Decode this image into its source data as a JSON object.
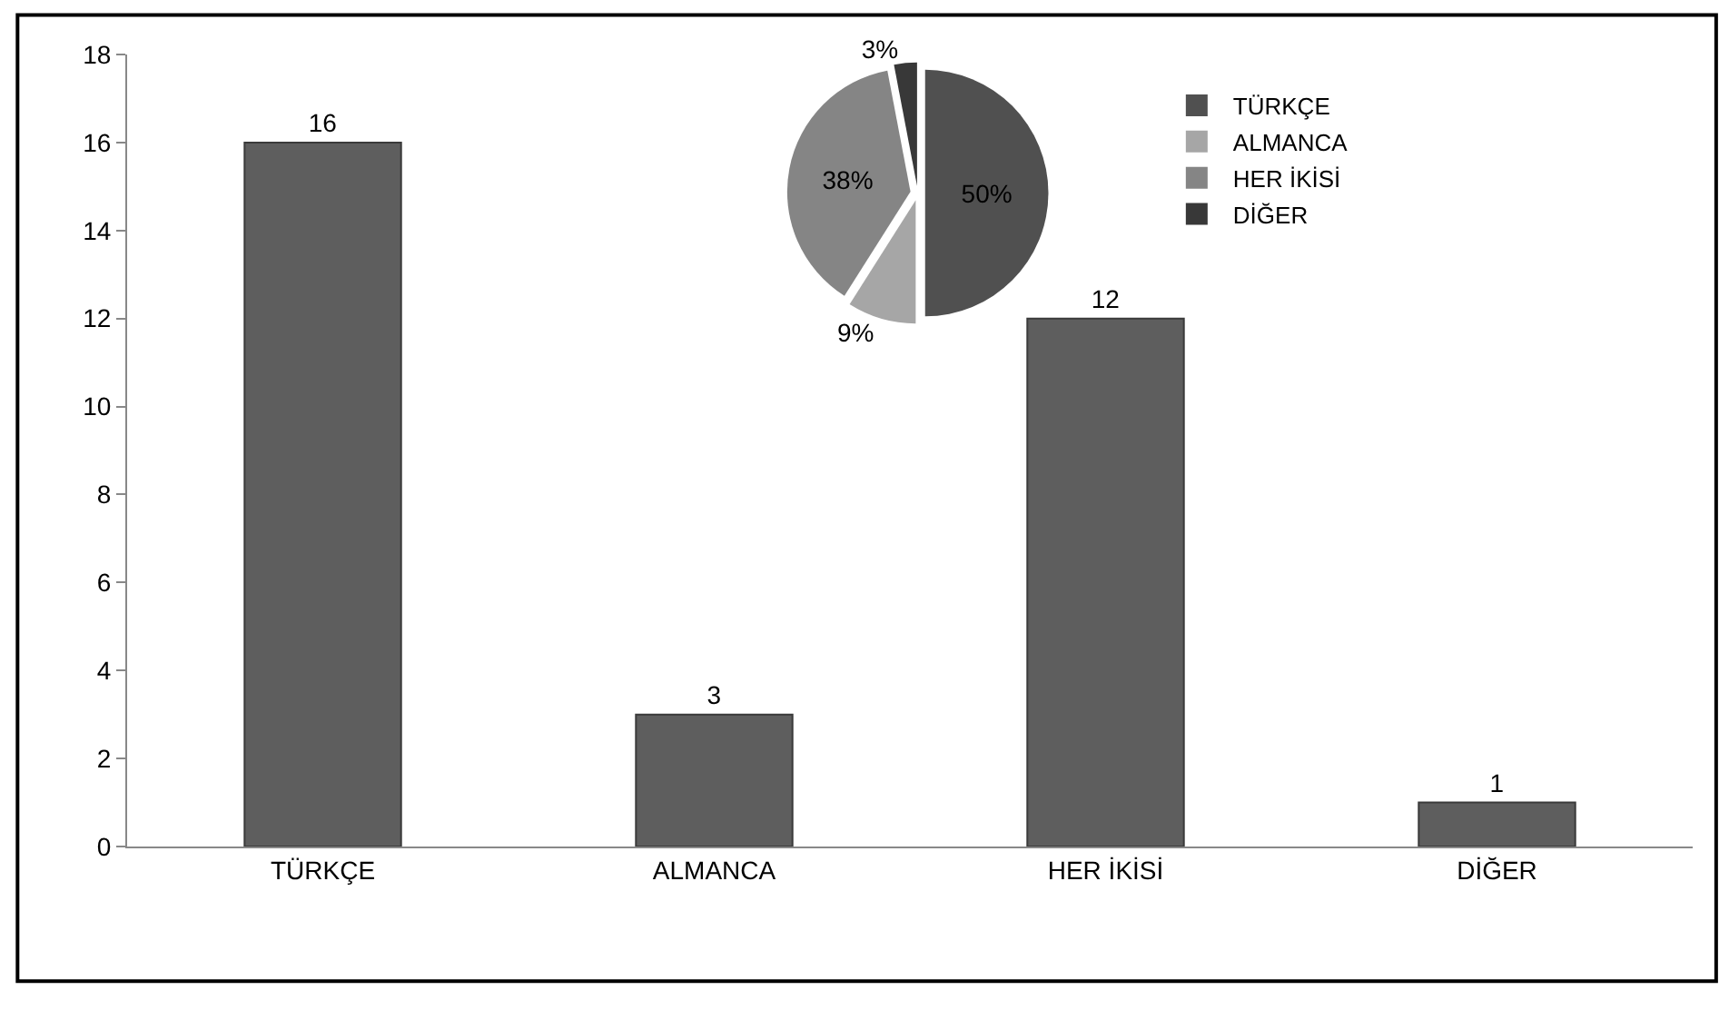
{
  "chart_data": [
    {
      "type": "bar",
      "categories": [
        "TÜRKÇE",
        "ALMANCA",
        "HER İKİSİ",
        "DİĞER"
      ],
      "values": [
        16,
        3,
        12,
        1
      ],
      "color": "#5e5e5e",
      "ylim": [
        0,
        18
      ],
      "yticks": [
        0,
        2,
        4,
        6,
        8,
        10,
        12,
        14,
        16,
        18
      ],
      "data_labels": true
    },
    {
      "type": "pie",
      "categories": [
        "TÜRKÇE",
        "ALMANCA",
        "HER İKİSİ",
        "DİĞER"
      ],
      "values": [
        50,
        9,
        38,
        3
      ],
      "colors": [
        "#505050",
        "#a6a6a6",
        "#858585",
        "#383838"
      ],
      "value_labels": [
        "50%",
        "9%",
        "38%",
        "3%"
      ],
      "legend": "right"
    }
  ]
}
